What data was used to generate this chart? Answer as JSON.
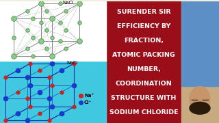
{
  "title_lines": [
    "SODIUM CHLORIDE",
    "STRUCTURE WITH",
    "COORDINATION",
    "NUMBER,",
    "ATOMIC PACKING",
    "FRACTION,",
    "EFFICIENCY BY",
    "SURENDER SIR"
  ],
  "title_color": "#ffffff",
  "title_bg_color": "#9a0e1a",
  "cl_color": "#1a3acc",
  "na_color": "#cc2222",
  "teal_color": "#40c8e0",
  "wire_color": "#888888",
  "atom_green": "#88cc88",
  "atom_green_edge": "#448844",
  "font_size": 6.8,
  "label_cl": "Cl⁻",
  "label_na": "Na⁺",
  "label_nacl": "NaCl"
}
